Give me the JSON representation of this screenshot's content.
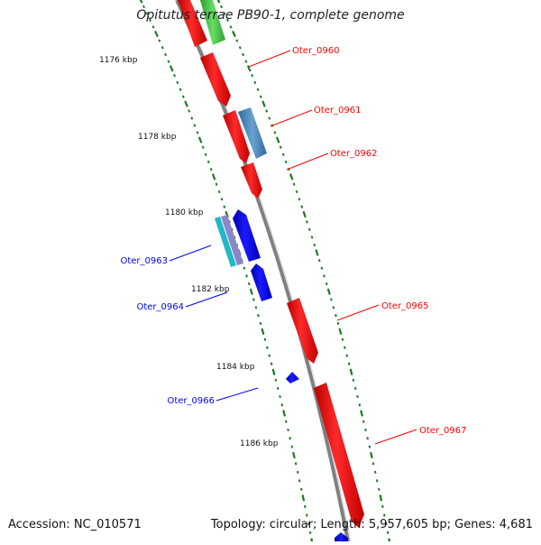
{
  "title": "Opitutus terrae PB90-1, complete genome",
  "accession_text": "Accession: NC_010571",
  "topology_text": "Topology: circular; Length: 5,957,605 bp; Genes: 4,681",
  "colors": {
    "backbone": "#808080",
    "tick": "#1f7a1f",
    "forward_gene": "#ff0000",
    "reverse_gene": "#0000ff",
    "other_forward": "#44cc44",
    "other_reverse": "#4a86b8"
  },
  "scale_labels": [
    {
      "label": "1176 kbp",
      "kbp": 1176
    },
    {
      "label": "1178 kbp",
      "kbp": 1178
    },
    {
      "label": "1180 kbp",
      "kbp": 1180
    },
    {
      "label": "1182 kbp",
      "kbp": 1182
    },
    {
      "label": "1184 kbp",
      "kbp": 1184
    },
    {
      "label": "1186 kbp",
      "kbp": 1186
    }
  ],
  "gene_labels": [
    {
      "label": "Oter_0960",
      "strand": "forward"
    },
    {
      "label": "Oter_0961",
      "strand": "forward"
    },
    {
      "label": "Oter_0962",
      "strand": "forward"
    },
    {
      "label": "Oter_0963",
      "strand": "reverse"
    },
    {
      "label": "Oter_0964",
      "strand": "reverse"
    },
    {
      "label": "Oter_0965",
      "strand": "forward"
    },
    {
      "label": "Oter_0966",
      "strand": "reverse"
    },
    {
      "label": "Oter_0967",
      "strand": "forward"
    }
  ]
}
